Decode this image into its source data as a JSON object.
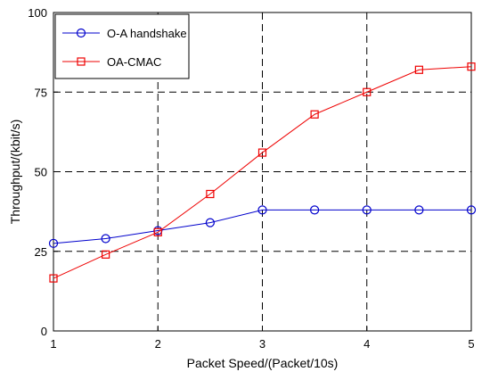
{
  "chart_data": {
    "type": "line",
    "title": "",
    "xlabel": "Packet Speed/(Packet/10s)",
    "ylabel": "Throughput/(kbit/s)",
    "xlim": [
      1,
      5
    ],
    "ylim": [
      0,
      100
    ],
    "xticks": [
      1,
      2,
      3,
      4,
      5
    ],
    "yticks": [
      0,
      25,
      50,
      75,
      100
    ],
    "grid": true,
    "grid_style": "dashed",
    "legend_position": "top-left",
    "x": [
      1,
      1.5,
      2,
      2.5,
      3,
      3.5,
      4,
      4.5,
      5
    ],
    "series": [
      {
        "name": "O-A handshake",
        "color": "#0000cc",
        "marker": "circle",
        "values": [
          27.5,
          29,
          31.5,
          34,
          38,
          38,
          38,
          38,
          38
        ]
      },
      {
        "name": "OA-CMAC",
        "color": "#ee0000",
        "marker": "square",
        "values": [
          16.5,
          24,
          31,
          43,
          56,
          68,
          75,
          82,
          83
        ]
      }
    ]
  }
}
